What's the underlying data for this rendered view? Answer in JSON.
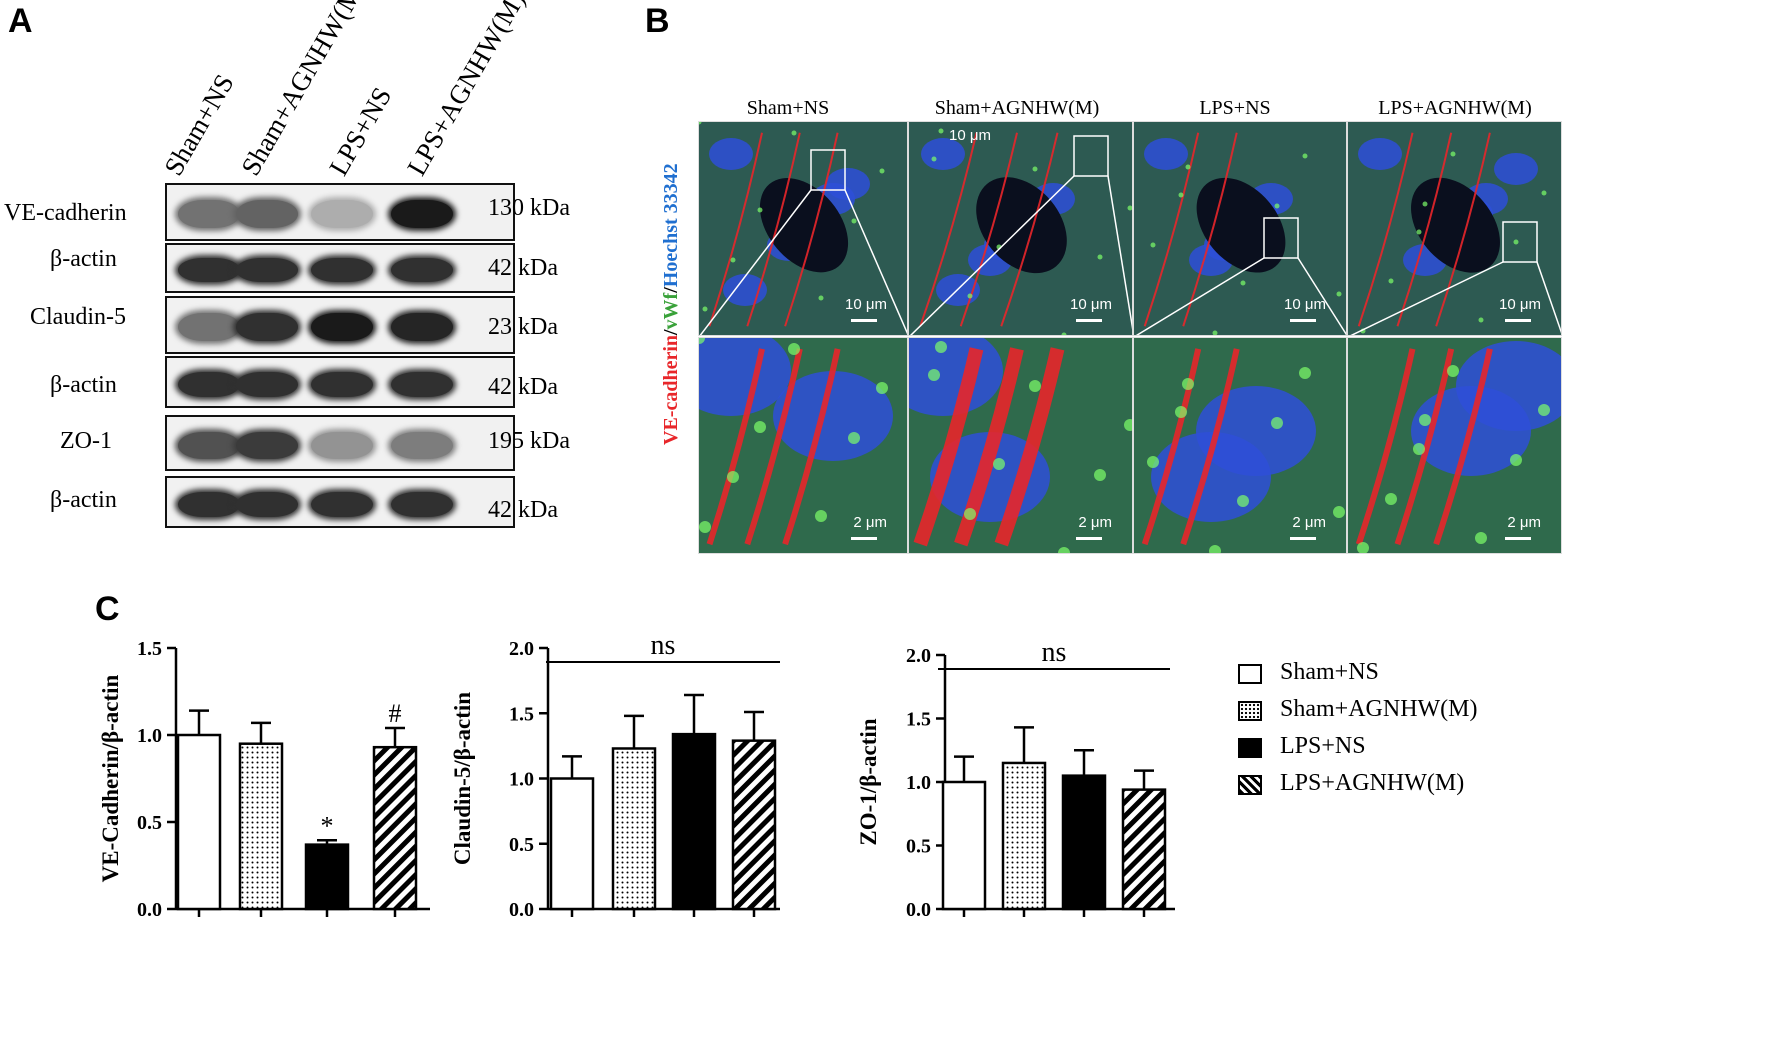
{
  "panels": {
    "A": "A",
    "B": "B",
    "C": "C"
  },
  "western_blot": {
    "lanes": [
      "Sham+NS",
      "Sham+AGNHW(M)",
      "LPS+NS",
      "LPS+AGNHW(M)"
    ],
    "rows": [
      {
        "label": "VE-cadherin",
        "kda": "130 kDa",
        "intensity": [
          0.55,
          0.62,
          0.28,
          0.95
        ]
      },
      {
        "label": "β-actin",
        "kda": "42 kDa",
        "intensity": [
          0.85,
          0.85,
          0.85,
          0.85
        ]
      },
      {
        "label": "Claudin-5",
        "kda": "23 kDa",
        "intensity": [
          0.55,
          0.85,
          0.95,
          0.9
        ]
      },
      {
        "label": "β-actin",
        "kda": "42 kDa",
        "intensity": [
          0.85,
          0.85,
          0.85,
          0.85
        ]
      },
      {
        "label": "ZO-1",
        "kda": "195 kDa",
        "intensity": [
          0.7,
          0.8,
          0.4,
          0.5
        ]
      },
      {
        "label": "β-actin",
        "kda": "42 kDa",
        "intensity": [
          0.85,
          0.85,
          0.85,
          0.85
        ]
      }
    ]
  },
  "immunofluorescence": {
    "columns": [
      "Sham+NS",
      "Sham+AGNHW(M)",
      "LPS+NS",
      "LPS+AGNHW(M)"
    ],
    "stain_label": {
      "red": "VE-cadherin",
      "sep1": "/",
      "green": "vWf",
      "sep2": "/",
      "blue": "Hoechst 33342"
    },
    "colors": {
      "red": "#e8262a",
      "green": "#3aa23a",
      "blue": "#1f6fd0"
    },
    "scale_top": "10 μm",
    "scale_bottom": "2 μm",
    "extra_top_label": "10 μm"
  },
  "chart_data": [
    {
      "type": "bar",
      "categories": [
        "Sham+NS",
        "Sham+AGNHW(M)",
        "LPS+NS",
        "LPS+AGNHW(M)"
      ],
      "values": [
        1.0,
        0.95,
        0.37,
        0.93
      ],
      "errors": [
        0.14,
        0.12,
        0.025,
        0.11
      ],
      "annotations": [
        "",
        "",
        "*",
        "#"
      ],
      "ylabel": "VE-Cadherin/β-actin",
      "ylim": [
        0,
        1.5
      ],
      "yticks": [
        "0.0",
        "0.5",
        "1.0",
        "1.5"
      ]
    },
    {
      "type": "bar",
      "categories": [
        "Sham+NS",
        "Sham+AGNHW(M)",
        "LPS+NS",
        "LPS+AGNHW(M)"
      ],
      "values": [
        1.0,
        1.23,
        1.34,
        1.29
      ],
      "errors": [
        0.17,
        0.25,
        0.3,
        0.22
      ],
      "annotation": "ns",
      "ylabel": "Claudin-5/β-actin",
      "ylim": [
        0,
        2.0
      ],
      "yticks": [
        "0.0",
        "0.5",
        "1.0",
        "1.5",
        "2.0"
      ]
    },
    {
      "type": "bar",
      "categories": [
        "Sham+NS",
        "Sham+AGNHW(M)",
        "LPS+NS",
        "LPS+AGNHW(M)"
      ],
      "values": [
        1.0,
        1.15,
        1.05,
        0.94
      ],
      "errors": [
        0.2,
        0.28,
        0.2,
        0.15
      ],
      "annotation": "ns",
      "ylabel": "ZO-1/β-actin",
      "ylim": [
        0,
        2.0
      ],
      "yticks": [
        "0.0",
        "0.5",
        "1.0",
        "1.5",
        "2.0"
      ]
    }
  ],
  "legend": [
    {
      "label": "Sham+NS",
      "pattern": "open"
    },
    {
      "label": "Sham+AGNHW(M)",
      "pattern": "dotted"
    },
    {
      "label": "LPS+NS",
      "pattern": "solid"
    },
    {
      "label": "LPS+AGNHW(M)",
      "pattern": "hatched"
    }
  ]
}
